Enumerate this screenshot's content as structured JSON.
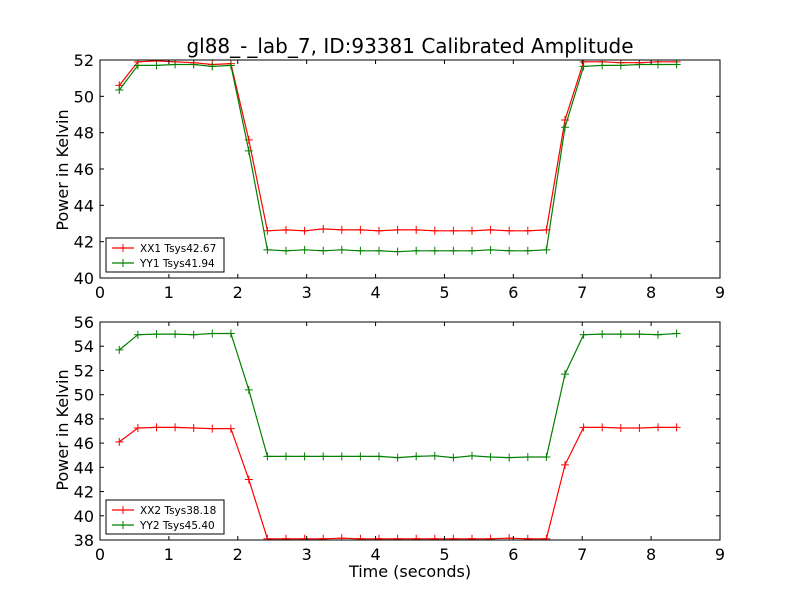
{
  "chart_data": [
    {
      "type": "line",
      "title": "gl88_-_lab_7, ID:93381 Calibrated Amplitude",
      "xlabel": "",
      "ylabel": "Power in Kelvin",
      "xlim": [
        0,
        9
      ],
      "ylim": [
        40,
        52
      ],
      "xticks": [
        "0",
        "1",
        "2",
        "3",
        "4",
        "5",
        "6",
        "7",
        "8",
        "9"
      ],
      "yticks": [
        "40",
        "42",
        "44",
        "46",
        "48",
        "50",
        "52"
      ],
      "grid": false,
      "legend": "lower-left",
      "x": [
        0.28,
        0.55,
        0.82,
        1.09,
        1.36,
        1.63,
        1.9,
        2.16,
        2.43,
        2.7,
        2.97,
        3.24,
        3.51,
        3.78,
        4.05,
        4.32,
        4.59,
        4.86,
        5.13,
        5.4,
        5.67,
        5.94,
        6.21,
        6.48,
        6.75,
        7.02,
        7.29,
        7.56,
        7.83,
        8.1,
        8.37
      ],
      "series": [
        {
          "name": "XX1 Tsys42.67",
          "color": "#ff0000",
          "values": [
            50.6,
            51.9,
            51.95,
            51.9,
            51.85,
            51.75,
            51.8,
            47.6,
            42.6,
            42.65,
            42.6,
            42.7,
            42.65,
            42.65,
            42.6,
            42.65,
            42.65,
            42.6,
            42.6,
            42.6,
            42.65,
            42.6,
            42.6,
            42.65,
            48.7,
            51.9,
            51.9,
            51.85,
            51.85,
            51.9,
            51.9
          ]
        },
        {
          "name": "YY1 Tsys41.94",
          "color": "#008000",
          "values": [
            50.35,
            51.7,
            51.7,
            51.75,
            51.75,
            51.65,
            51.7,
            47.0,
            41.55,
            41.5,
            41.55,
            41.5,
            41.55,
            41.5,
            41.5,
            41.45,
            41.5,
            41.5,
            41.5,
            41.5,
            41.55,
            41.5,
            41.5,
            41.55,
            48.3,
            51.65,
            51.7,
            51.7,
            51.75,
            51.75,
            51.75
          ]
        }
      ]
    },
    {
      "type": "line",
      "title": "",
      "xlabel": "Time (seconds)",
      "ylabel": "Power in Kelvin",
      "xlim": [
        0,
        9
      ],
      "ylim": [
        38,
        56
      ],
      "xticks": [
        "0",
        "1",
        "2",
        "3",
        "4",
        "5",
        "6",
        "7",
        "8",
        "9"
      ],
      "yticks": [
        "38",
        "40",
        "42",
        "44",
        "46",
        "48",
        "50",
        "52",
        "54",
        "56"
      ],
      "grid": false,
      "legend": "lower-left",
      "x": [
        0.28,
        0.55,
        0.82,
        1.09,
        1.36,
        1.63,
        1.9,
        2.16,
        2.43,
        2.7,
        2.97,
        3.24,
        3.51,
        3.78,
        4.05,
        4.32,
        4.59,
        4.86,
        5.13,
        5.4,
        5.67,
        5.94,
        6.21,
        6.48,
        6.75,
        7.02,
        7.29,
        7.56,
        7.83,
        8.1,
        8.37
      ],
      "series": [
        {
          "name": "XX2 Tsys38.18",
          "color": "#ff0000",
          "values": [
            46.1,
            47.25,
            47.3,
            47.3,
            47.25,
            47.2,
            47.2,
            43.0,
            38.1,
            38.1,
            38.1,
            38.1,
            38.15,
            38.1,
            38.1,
            38.1,
            38.1,
            38.1,
            38.1,
            38.1,
            38.1,
            38.15,
            38.1,
            38.1,
            44.2,
            47.3,
            47.3,
            47.25,
            47.25,
            47.3,
            47.3
          ]
        },
        {
          "name": "YY2 Tsys45.40",
          "color": "#008000",
          "values": [
            53.7,
            54.95,
            55.0,
            55.0,
            54.95,
            55.05,
            55.05,
            50.4,
            44.9,
            44.9,
            44.9,
            44.9,
            44.9,
            44.9,
            44.9,
            44.8,
            44.9,
            44.95,
            44.8,
            44.95,
            44.85,
            44.8,
            44.85,
            44.85,
            51.7,
            54.95,
            55.0,
            55.0,
            55.0,
            54.95,
            55.05
          ]
        }
      ]
    }
  ]
}
